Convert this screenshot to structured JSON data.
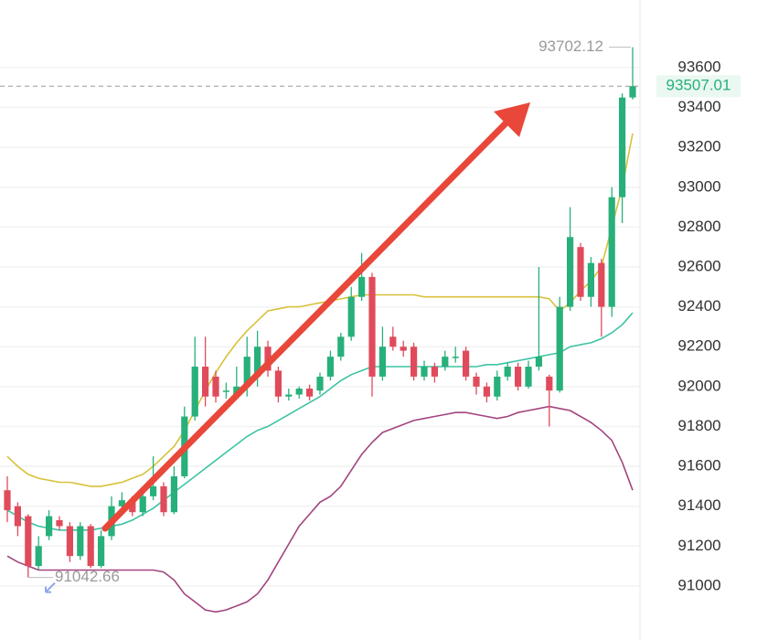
{
  "chart_data": {
    "type": "candlestick",
    "up_color": "#27b07a",
    "down_color": "#e04b5c",
    "ylim": [
      90729,
      93939
    ],
    "yticks": [
      91000,
      91200,
      91400,
      91600,
      91800,
      92000,
      92200,
      92400,
      92600,
      92800,
      93000,
      93200,
      93400,
      93600
    ],
    "grid": true,
    "open": [
      91480,
      91400,
      91350,
      91100,
      91250,
      91330,
      91300,
      91150,
      91300,
      91100,
      91250,
      91400,
      91430,
      91370,
      91450,
      91500,
      91370,
      91550,
      91850,
      92100,
      92050,
      91980,
      91960,
      92000,
      92050,
      92200,
      92080,
      91950,
      91960,
      91990,
      91980,
      92050,
      92150,
      92250,
      92450,
      92550,
      92050,
      92250,
      92200,
      92200,
      92050,
      92100,
      92100,
      92150,
      92180,
      92050,
      92000,
      91950,
      92050,
      92100,
      92000,
      92100,
      92050,
      91980,
      92400,
      92700,
      92450,
      92620,
      92400,
      92950,
      93450
    ],
    "high": [
      91550,
      91420,
      91360,
      91250,
      91380,
      91350,
      91320,
      91320,
      91310,
      91280,
      91450,
      91470,
      91450,
      91480,
      91650,
      91520,
      91600,
      91900,
      92250,
      92250,
      92080,
      92020,
      92100,
      92250,
      92280,
      92230,
      92100,
      91990,
      92000,
      92010,
      92070,
      92180,
      92270,
      92500,
      92670,
      92570,
      92300,
      92300,
      92230,
      92220,
      92130,
      92120,
      92180,
      92200,
      92200,
      92070,
      92020,
      92080,
      92120,
      92120,
      92130,
      92600,
      92060,
      92450,
      92900,
      92720,
      92650,
      92640,
      93000,
      93470,
      93702.12
    ],
    "low": [
      91320,
      91250,
      91042.66,
      91080,
      91230,
      91280,
      91120,
      91130,
      91090,
      91090,
      91230,
      91380,
      91350,
      91350,
      91430,
      91350,
      91360,
      91540,
      91830,
      91900,
      91920,
      91940,
      91940,
      91950,
      92000,
      92050,
      91920,
      91930,
      91940,
      91930,
      91960,
      92030,
      92130,
      92230,
      92430,
      91950,
      92030,
      92180,
      92150,
      92030,
      92030,
      92020,
      92080,
      92120,
      92030,
      91960,
      91920,
      91930,
      92030,
      91980,
      91990,
      92080,
      91800,
      91970,
      92380,
      92430,
      92400,
      92250,
      92350,
      92820,
      93440
    ],
    "close": [
      91380,
      91300,
      91100,
      91200,
      91350,
      91300,
      91150,
      91300,
      91100,
      91250,
      91400,
      91430,
      91370,
      91450,
      91500,
      91370,
      91550,
      91850,
      92100,
      91950,
      91950,
      91980,
      92000,
      92150,
      92200,
      92080,
      91950,
      91960,
      91990,
      91950,
      92050,
      92150,
      92250,
      92450,
      92550,
      92050,
      92200,
      92200,
      92180,
      92050,
      92100,
      92050,
      92150,
      92150,
      92050,
      92000,
      91950,
      92050,
      92100,
      92000,
      92100,
      92150,
      91980,
      92400,
      92750,
      92450,
      92620,
      92400,
      92950,
      93450,
      93507.01
    ],
    "lines": [
      {
        "color": "#d8c13a",
        "values": [
          91650,
          91600,
          91560,
          91540,
          91530,
          91520,
          91520,
          91510,
          91500,
          91500,
          91510,
          91520,
          91540,
          91560,
          91600,
          91650,
          91700,
          91780,
          91880,
          91980,
          92070,
          92150,
          92220,
          92280,
          92330,
          92380,
          92390,
          92400,
          92400,
          92410,
          92420,
          92430,
          92440,
          92450,
          92460,
          92460,
          92460,
          92460,
          92460,
          92460,
          92450,
          92450,
          92450,
          92450,
          92450,
          92450,
          92450,
          92450,
          92450,
          92450,
          92450,
          92450,
          92440,
          92380,
          92420,
          92480,
          92530,
          92600,
          92800,
          93000,
          93270
        ]
      },
      {
        "color": "#3cc3a4",
        "values": [
          91380,
          91350,
          91320,
          91300,
          91290,
          91280,
          91280,
          91280,
          91280,
          91290,
          91300,
          91310,
          91330,
          91360,
          91390,
          91430,
          91470,
          91510,
          91550,
          91590,
          91630,
          91670,
          91710,
          91750,
          91780,
          91800,
          91830,
          91860,
          91890,
          91920,
          91950,
          91990,
          92030,
          92060,
          92080,
          92100,
          92100,
          92100,
          92100,
          92100,
          92100,
          92100,
          92100,
          92100,
          92100,
          92100,
          92110,
          92110,
          92120,
          92130,
          92140,
          92150,
          92160,
          92170,
          92200,
          92210,
          92220,
          92240,
          92270,
          92310,
          92370
        ]
      },
      {
        "color": "#a2447f",
        "values": [
          91150,
          91120,
          91100,
          91080,
          91080,
          91080,
          91080,
          91080,
          91080,
          91080,
          91080,
          91080,
          91080,
          91080,
          91080,
          91070,
          91030,
          90960,
          90920,
          90880,
          90870,
          90880,
          90900,
          90920,
          90960,
          91030,
          91120,
          91210,
          91300,
          91360,
          91420,
          91450,
          91500,
          91580,
          91660,
          91720,
          91770,
          91790,
          91810,
          91830,
          91840,
          91850,
          91860,
          91870,
          91870,
          91860,
          91850,
          91840,
          91850,
          91870,
          91880,
          91890,
          91900,
          91890,
          91880,
          91850,
          91820,
          91780,
          91730,
          91620,
          91480
        ]
      }
    ]
  }
}
